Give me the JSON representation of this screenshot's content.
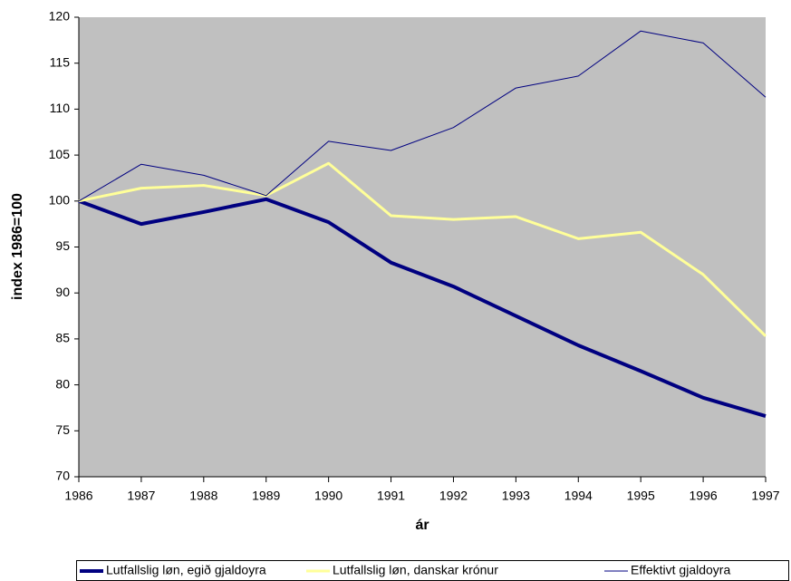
{
  "chart_data": {
    "type": "line",
    "y_label": "index 1986=100",
    "x_label": "ár",
    "x": [
      1986,
      1987,
      1988,
      1989,
      1990,
      1991,
      1992,
      1993,
      1994,
      1995,
      1996,
      1997
    ],
    "xlim": [
      1986,
      1997
    ],
    "xticks": [
      1986,
      1987,
      1988,
      1989,
      1990,
      1991,
      1992,
      1993,
      1994,
      1995,
      1996,
      1997
    ],
    "ylim": [
      70,
      120
    ],
    "yticks": [
      70,
      75,
      80,
      85,
      90,
      95,
      100,
      105,
      110,
      115,
      120
    ],
    "grid": false,
    "background": "#c0c0c0",
    "legend": "bottom",
    "series": [
      {
        "name": "Lutfallslig løn, egið gjaldoyra",
        "color": "#000080",
        "width": 4,
        "values": [
          100,
          97.5,
          98.8,
          100.2,
          97.7,
          93.3,
          90.7,
          87.5,
          84.3,
          81.5,
          78.6,
          76.6
        ]
      },
      {
        "name": "Lutfallslig løn, danskar krónur",
        "color": "#ffff99",
        "width": 3,
        "values": [
          100,
          101.4,
          101.7,
          100.6,
          104.1,
          98.4,
          98.0,
          98.3,
          95.9,
          96.6,
          92.0,
          85.3
        ]
      },
      {
        "name": "Effektivt gjaldoyra",
        "color": "#000080",
        "width": 1,
        "values": [
          100,
          104.0,
          102.8,
          100.6,
          106.5,
          105.5,
          108.0,
          112.3,
          113.6,
          118.5,
          117.2,
          111.3
        ]
      }
    ]
  }
}
